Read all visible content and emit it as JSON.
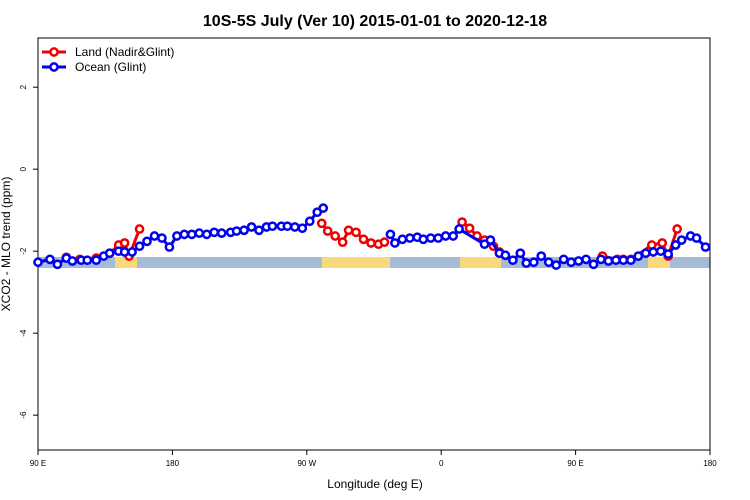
{
  "chart_data": {
    "type": "line",
    "title": "10S-5S July (Ver 10)   2015-01-01 to 2020-12-18",
    "x_label": "Longitude (deg E)",
    "y_label": "XCO2 - MLO trend (ppm)",
    "xlim": [
      90,
      540
    ],
    "xticks": [
      {
        "value": 90,
        "label": "90 E"
      },
      {
        "value": 180,
        "label": "180"
      },
      {
        "value": 270,
        "label": "90 W"
      },
      {
        "value": 360,
        "label": "0"
      },
      {
        "value": 450,
        "label": "90 E"
      },
      {
        "value": 540,
        "label": "180"
      }
    ],
    "ylim": [
      -6.85,
      3.2
    ],
    "yticks": [
      2,
      0,
      -2,
      -4,
      -6
    ],
    "legend": "top-left",
    "series": [
      {
        "name": "Land (Nadir&Glint)",
        "color": "#ee0000",
        "x": [
          109,
          118,
          129,
          138,
          144,
          148,
          151,
          158,
          null,
          280,
          284,
          289,
          294,
          298,
          303,
          308,
          313,
          318,
          322,
          null,
          374,
          379,
          384,
          389,
          395,
          399,
          null,
          468,
          478,
          482,
          487,
          501,
          508,
          512,
          518
        ],
        "values": [
          -2.15,
          -2.2,
          -2.17,
          -2.05,
          -1.85,
          -1.8,
          -2.12,
          -1.46,
          null,
          -1.32,
          -1.51,
          -1.63,
          -1.78,
          -1.49,
          -1.54,
          -1.71,
          -1.8,
          -1.83,
          -1.78,
          null,
          -1.29,
          -1.44,
          -1.63,
          -1.73,
          -1.88,
          -2.02,
          null,
          -2.12,
          -2.2,
          -2.2,
          -2.2,
          -1.85,
          -1.8,
          -2.12,
          -1.46
        ]
      },
      {
        "name": "Ocean (Glint)",
        "color": "#0000ee",
        "x": [
          90,
          98,
          103,
          109,
          113,
          119,
          123,
          129,
          134,
          138,
          144,
          148,
          153,
          158,
          163,
          168,
          173,
          178,
          183,
          188,
          193,
          198,
          203,
          208,
          213,
          219,
          223,
          228,
          233,
          238,
          243,
          247,
          253,
          257,
          262,
          267,
          272,
          277,
          281,
          null,
          326,
          329,
          334,
          339,
          344,
          348,
          353,
          358,
          363,
          368,
          372,
          389,
          393,
          399,
          403,
          408,
          413,
          417,
          422,
          427,
          432,
          437,
          442,
          447,
          452,
          457,
          462,
          467,
          472,
          477,
          482,
          487,
          492,
          497,
          502,
          507,
          512,
          517,
          521,
          527,
          531,
          537
        ],
        "values": [
          -2.27,
          -2.2,
          -2.32,
          -2.17,
          -2.24,
          -2.22,
          -2.22,
          -2.22,
          -2.12,
          -2.05,
          -2.0,
          -2.02,
          -2.02,
          -1.88,
          -1.76,
          -1.63,
          -1.68,
          -1.9,
          -1.63,
          -1.59,
          -1.59,
          -1.56,
          -1.59,
          -1.54,
          -1.56,
          -1.54,
          -1.51,
          -1.49,
          -1.41,
          -1.49,
          -1.41,
          -1.39,
          -1.39,
          -1.39,
          -1.41,
          -1.44,
          -1.27,
          -1.05,
          -0.95,
          null,
          -1.59,
          -1.8,
          -1.71,
          -1.68,
          -1.66,
          -1.71,
          -1.68,
          -1.68,
          -1.63,
          -1.63,
          -1.46,
          -1.83,
          -1.73,
          -2.05,
          -2.1,
          -2.22,
          -2.05,
          -2.29,
          -2.27,
          -2.12,
          -2.27,
          -2.34,
          -2.2,
          -2.27,
          -2.24,
          -2.2,
          -2.32,
          -2.2,
          -2.24,
          -2.22,
          -2.22,
          -2.22,
          -2.12,
          -2.05,
          -2.02,
          -2.0,
          -2.07,
          -1.85,
          -1.73,
          -1.63,
          -1.68,
          -1.9
        ]
      }
    ]
  }
}
